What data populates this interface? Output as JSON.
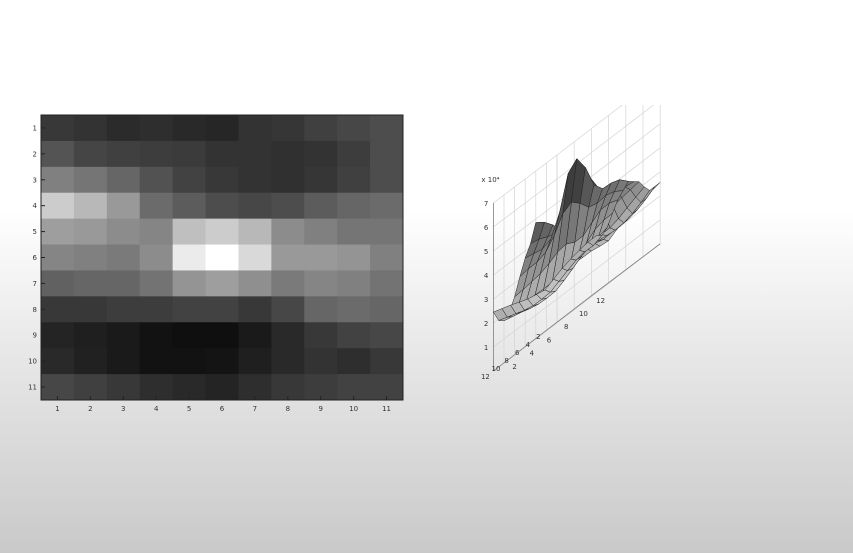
{
  "chart_data": [
    {
      "type": "heatmap",
      "colormap": "gray",
      "x_ticks": [
        "1",
        "2",
        "3",
        "4",
        "5",
        "6",
        "7",
        "8",
        "9",
        "10",
        "11"
      ],
      "y_ticks": [
        "1",
        "2",
        "3",
        "4",
        "5",
        "6",
        "7",
        "8",
        "9",
        "10",
        "11"
      ],
      "values": [
        [
          0.22,
          0.2,
          0.17,
          0.18,
          0.16,
          0.15,
          0.2,
          0.21,
          0.25,
          0.28,
          0.3
        ],
        [
          0.33,
          0.27,
          0.25,
          0.24,
          0.23,
          0.2,
          0.2,
          0.19,
          0.2,
          0.24,
          0.3
        ],
        [
          0.5,
          0.46,
          0.4,
          0.32,
          0.26,
          0.22,
          0.2,
          0.19,
          0.21,
          0.25,
          0.3
        ],
        [
          0.8,
          0.72,
          0.6,
          0.42,
          0.36,
          0.3,
          0.28,
          0.3,
          0.36,
          0.4,
          0.42
        ],
        [
          0.62,
          0.6,
          0.55,
          0.52,
          0.75,
          0.8,
          0.72,
          0.55,
          0.5,
          0.46,
          0.46
        ],
        [
          0.52,
          0.5,
          0.48,
          0.55,
          0.92,
          1.0,
          0.85,
          0.6,
          0.6,
          0.58,
          0.5
        ],
        [
          0.38,
          0.4,
          0.4,
          0.45,
          0.58,
          0.62,
          0.56,
          0.48,
          0.52,
          0.5,
          0.45
        ],
        [
          0.22,
          0.22,
          0.24,
          0.24,
          0.26,
          0.26,
          0.22,
          0.28,
          0.4,
          0.42,
          0.4
        ],
        [
          0.14,
          0.12,
          0.1,
          0.07,
          0.06,
          0.06,
          0.1,
          0.16,
          0.22,
          0.26,
          0.28
        ],
        [
          0.16,
          0.13,
          0.1,
          0.07,
          0.07,
          0.08,
          0.12,
          0.16,
          0.2,
          0.18,
          0.22
        ],
        [
          0.28,
          0.25,
          0.22,
          0.18,
          0.16,
          0.14,
          0.18,
          0.22,
          0.24,
          0.26,
          0.26
        ]
      ]
    },
    {
      "type": "surface",
      "exponent_label": "x 10⁴",
      "z_ticks": [
        "1",
        "2",
        "3",
        "4",
        "5",
        "6",
        "7"
      ],
      "x_ticks": [
        "2",
        "4",
        "6",
        "8",
        "10",
        "12"
      ],
      "y_ticks": [
        "2",
        "4",
        "6",
        "8",
        "10",
        "12"
      ]
    }
  ]
}
